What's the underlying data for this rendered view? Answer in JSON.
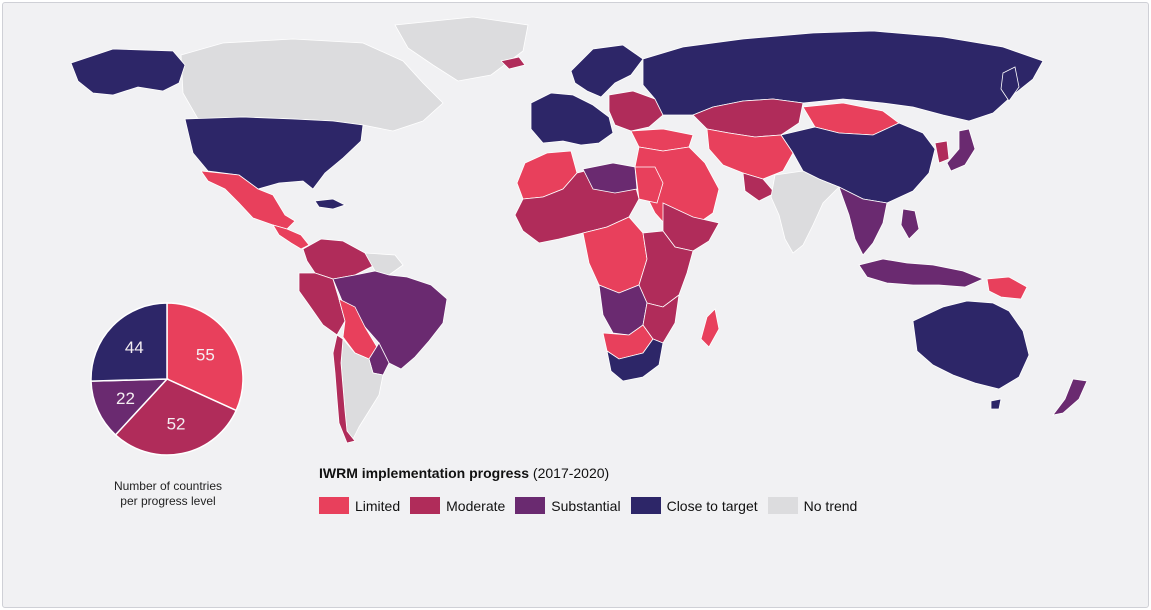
{
  "colors": {
    "limited": "#e8405c",
    "moderate": "#b02c5a",
    "substantial": "#6a2a70",
    "close_to_target": "#2d2668",
    "no_trend": "#dcdcde",
    "background": "#f1f1f3"
  },
  "legend": {
    "title_bold": "IWRM implementation progress",
    "title_range": "(2017-2020)",
    "items": [
      {
        "label": "Limited",
        "color": "#e8405c"
      },
      {
        "label": "Moderate",
        "color": "#b02c5a"
      },
      {
        "label": "Substantial",
        "color": "#6a2a70"
      },
      {
        "label": "Close to target",
        "color": "#2d2668"
      },
      {
        "label": "No trend",
        "color": "#dcdcde"
      }
    ]
  },
  "pie_caption": [
    "Number of countries",
    "per progress level"
  ],
  "chart_data": {
    "type": "pie",
    "title": "",
    "slices": [
      {
        "label": "Limited",
        "value": 55,
        "color": "#e8405c"
      },
      {
        "label": "Moderate",
        "value": 52,
        "color": "#b02c5a"
      },
      {
        "label": "Substantial",
        "value": 22,
        "color": "#6a2a70"
      },
      {
        "label": "Close to target",
        "value": 44,
        "color": "#2d2668"
      }
    ]
  },
  "map": {
    "regions": [
      {
        "name": "Greenland",
        "level": "no_trend"
      },
      {
        "name": "Canada",
        "level": "no_trend"
      },
      {
        "name": "Alaska",
        "level": "close_to_target"
      },
      {
        "name": "United States",
        "level": "close_to_target"
      },
      {
        "name": "Mexico",
        "level": "limited"
      },
      {
        "name": "Central America",
        "level": "limited"
      },
      {
        "name": "Colombia / Venezuela",
        "level": "moderate"
      },
      {
        "name": "Peru",
        "level": "moderate"
      },
      {
        "name": "Brazil",
        "level": "substantial"
      },
      {
        "name": "Bolivia",
        "level": "limited"
      },
      {
        "name": "Paraguay",
        "level": "substantial"
      },
      {
        "name": "Argentina",
        "level": "no_trend"
      },
      {
        "name": "Chile",
        "level": "moderate"
      },
      {
        "name": "Guianas",
        "level": "no_trend"
      },
      {
        "name": "Scandinavia",
        "level": "close_to_target"
      },
      {
        "name": "Western Europe",
        "level": "close_to_target"
      },
      {
        "name": "Eastern Europe",
        "level": "moderate"
      },
      {
        "name": "Russia",
        "level": "close_to_target"
      },
      {
        "name": "Kazakhstan",
        "level": "moderate"
      },
      {
        "name": "Mongolia",
        "level": "limited"
      },
      {
        "name": "China",
        "level": "close_to_target"
      },
      {
        "name": "Middle East",
        "level": "limited"
      },
      {
        "name": "Central Asia",
        "level": "limited"
      },
      {
        "name": "India",
        "level": "no_trend"
      },
      {
        "name": "Southeast Asia",
        "level": "substantial"
      },
      {
        "name": "Japan",
        "level": "substantial"
      },
      {
        "name": "Indonesia",
        "level": "substantial"
      },
      {
        "name": "Papua New Guinea",
        "level": "limited"
      },
      {
        "name": "Australia",
        "level": "close_to_target"
      },
      {
        "name": "New Zealand",
        "level": "substantial"
      },
      {
        "name": "West Africa",
        "level": "limited"
      },
      {
        "name": "Sahel",
        "level": "moderate"
      },
      {
        "name": "Libya",
        "level": "substantial"
      },
      {
        "name": "Egypt",
        "level": "limited"
      },
      {
        "name": "East Africa",
        "level": "moderate"
      },
      {
        "name": "Central Africa",
        "level": "limited"
      },
      {
        "name": "Angola / Namibia",
        "level": "substantial"
      },
      {
        "name": "South Africa",
        "level": "close_to_target"
      },
      {
        "name": "Madagascar",
        "level": "limited"
      }
    ]
  }
}
